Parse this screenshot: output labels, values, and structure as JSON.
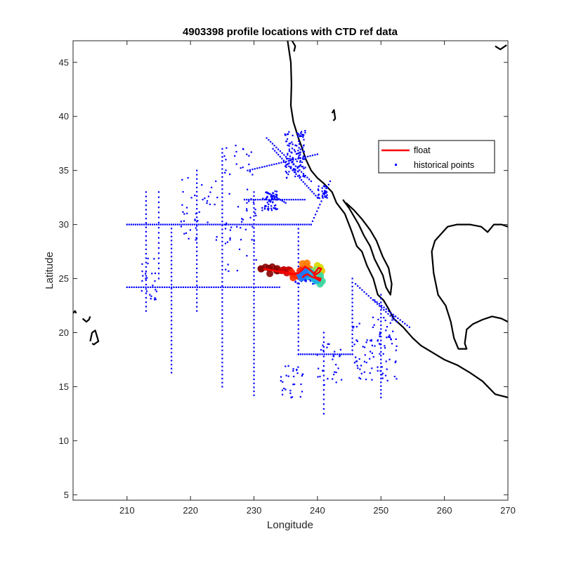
{
  "chart_data": {
    "type": "scatter",
    "title": "4903398 profile locations with CTD ref data",
    "xlabel": "Longitude",
    "ylabel": "Latitude",
    "xlim": [
      201.5,
      270
    ],
    "ylim": [
      4.5,
      47
    ],
    "xticks": [
      210,
      220,
      230,
      240,
      250,
      260,
      270
    ],
    "yticks": [
      5,
      10,
      15,
      20,
      25,
      30,
      35,
      40,
      45
    ],
    "grid": false,
    "legend_position": "top-right",
    "legend": [
      "float",
      "historical points"
    ],
    "colors": {
      "float": "#ff0000",
      "historical": "#0000ff",
      "coast": "#000000",
      "axis": "#262626"
    },
    "series": [
      {
        "name": "float",
        "kind": "line",
        "x": [
          231.5,
          232.5,
          233.5,
          234.5,
          235.5,
          236.2,
          237.0,
          237.6,
          238.0,
          238.6,
          239.2,
          239.8,
          240.3,
          240.6,
          240.2,
          239.8,
          239.4,
          239.8,
          240.5,
          240.4,
          239.8,
          239.0,
          238.4,
          238.0,
          237.6
        ],
        "y": [
          25.9,
          25.8,
          25.7,
          25.6,
          25.5,
          25.4,
          25.5,
          25.8,
          26.1,
          25.9,
          25.6,
          25.4,
          25.6,
          25.9,
          26.0,
          25.7,
          25.4,
          25.1,
          25.0,
          24.8,
          25.0,
          25.2,
          25.4,
          25.3,
          25.1
        ]
      },
      {
        "name": "historical points",
        "kind": "scatter",
        "tracks": [
          {
            "from": [
              210.0,
              30.0
            ],
            "to": [
              239.0,
              30.0
            ],
            "n": 88
          },
          {
            "from": [
              210.0,
              24.2
            ],
            "to": [
              234.0,
              24.2
            ],
            "n": 66
          },
          {
            "from": [
              228.5,
              32.3
            ],
            "to": [
              238.0,
              32.3
            ],
            "n": 28
          },
          {
            "from": [
              237.0,
              18.0
            ],
            "to": [
              245.5,
              18.0
            ],
            "n": 26
          },
          {
            "from": [
              217.0,
              16.3
            ],
            "to": [
              217.0,
              30.0
            ],
            "n": 38
          },
          {
            "from": [
              225.0,
              15.0
            ],
            "to": [
              225.0,
              37.0
            ],
            "n": 60
          },
          {
            "from": [
              230.0,
              14.2
            ],
            "to": [
              230.0,
              33.0
            ],
            "n": 52
          },
          {
            "from": [
              237.0,
              18.0
            ],
            "to": [
              237.0,
              30.0
            ],
            "n": 32
          },
          {
            "from": [
              245.5,
              18.0
            ],
            "to": [
              245.5,
              25.0
            ],
            "n": 20
          },
          {
            "from": [
              250.0,
              23.5
            ],
            "to": [
              250.0,
              14.0
            ],
            "n": 28
          },
          {
            "from": [
              213.0,
              33.0
            ],
            "to": [
              213.0,
              22.0
            ],
            "n": 28
          },
          {
            "from": [
              215.0,
              33.0
            ],
            "to": [
              215.0,
              25.0
            ],
            "n": 18
          },
          {
            "from": [
              221.0,
              35.0
            ],
            "to": [
              221.0,
              22.0
            ],
            "n": 34
          },
          {
            "from": [
              241.0,
              20.0
            ],
            "to": [
              241.0,
              12.5
            ],
            "n": 18
          },
          {
            "from": [
              229.0,
              35.0
            ],
            "to": [
              240.0,
              36.5
            ],
            "n": 30
          },
          {
            "from": [
              232.0,
              38.0
            ],
            "to": [
              239.0,
              34.0
            ],
            "n": 24
          },
          {
            "from": [
              233.0,
              37.0
            ],
            "to": [
              240.0,
              32.5
            ],
            "n": 26
          },
          {
            "from": [
              232.0,
              33.0
            ],
            "to": [
              235.0,
              32.0
            ],
            "n": 12
          },
          {
            "from": [
              246.0,
              24.5
            ],
            "to": [
              252.5,
              21.0
            ],
            "n": 20
          },
          {
            "from": [
              249.0,
              23.0
            ],
            "to": [
              254.5,
              20.5
            ],
            "n": 16
          },
          {
            "from": [
              239.0,
              30.0
            ],
            "to": [
              242.0,
              34.0
            ],
            "n": 14
          }
        ],
        "clusters": [
          {
            "center": [
              236.5,
              36.5
            ],
            "spread": [
              1.6,
              2.2
            ],
            "n": 120
          },
          {
            "center": [
              232.5,
              32.2
            ],
            "spread": [
              1.2,
              0.9
            ],
            "n": 60
          },
          {
            "center": [
              240.8,
              33.0
            ],
            "spread": [
              0.8,
              0.6
            ],
            "n": 30
          },
          {
            "center": [
              238.2,
              25.0
            ],
            "spread": [
              1.8,
              0.5
            ],
            "n": 40
          },
          {
            "center": [
              249.0,
              18.5
            ],
            "spread": [
              3.5,
              3.0
            ],
            "n": 90
          },
          {
            "center": [
              236.0,
              15.5
            ],
            "spread": [
              2.0,
              1.5
            ],
            "n": 30
          },
          {
            "center": [
              221.5,
              31.5
            ],
            "spread": [
              3.0,
              3.0
            ],
            "n": 40
          },
          {
            "center": [
              228.0,
              29.5
            ],
            "spread": [
              2.5,
              4.0
            ],
            "n": 40
          },
          {
            "center": [
              213.5,
              25.0
            ],
            "spread": [
              1.2,
              2.0
            ],
            "n": 25
          },
          {
            "center": [
              227.5,
              36.0
            ],
            "spread": [
              2.5,
              1.5
            ],
            "n": 20
          },
          {
            "center": [
              242.0,
              17.0
            ],
            "spread": [
              2.0,
              2.0
            ],
            "n": 30
          }
        ]
      }
    ]
  }
}
